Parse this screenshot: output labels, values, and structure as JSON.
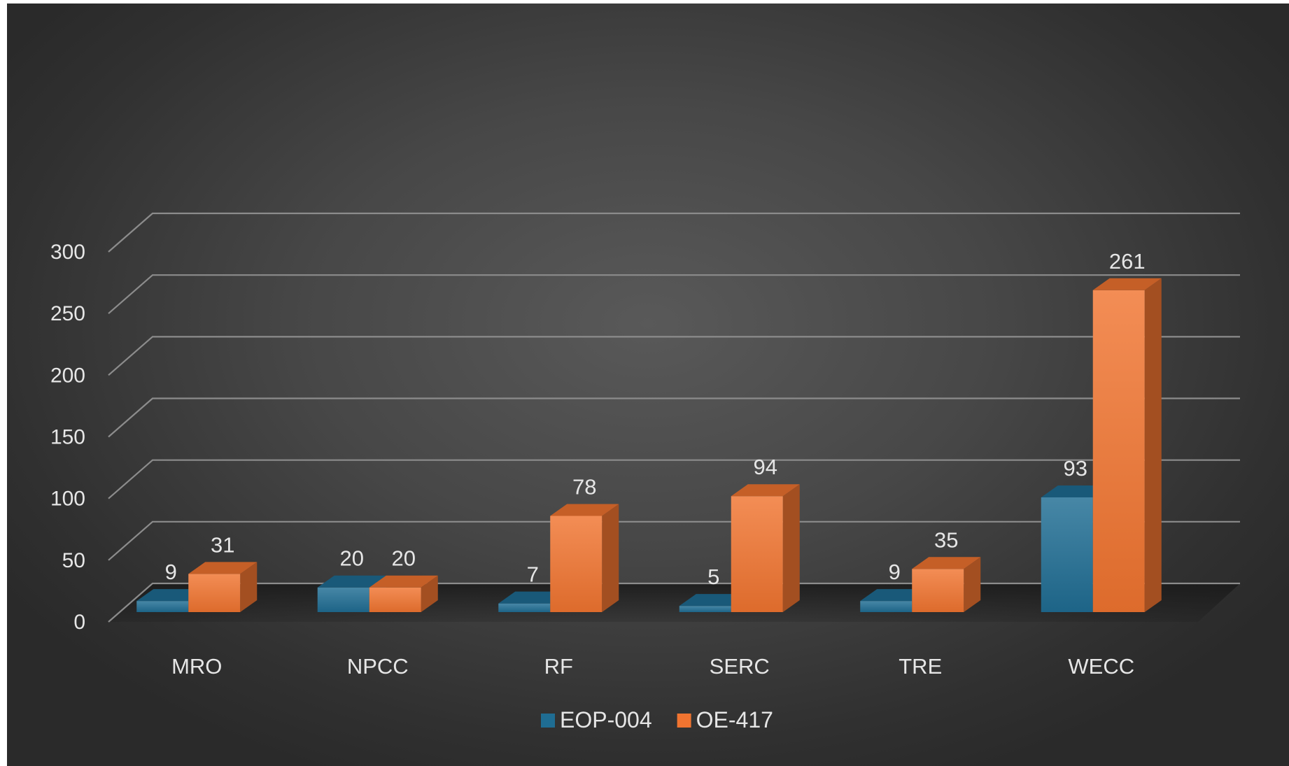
{
  "chart_data": {
    "type": "bar",
    "title": "",
    "xlabel": "",
    "ylabel": "",
    "categories": [
      "MRO",
      "NPCC",
      "RF",
      "SERC",
      "TRE",
      "WECC"
    ],
    "series": [
      {
        "name": "EOP-004",
        "values": [
          9,
          20,
          7,
          5,
          9,
          93
        ],
        "color": "#1f6d93"
      },
      {
        "name": "OE-417",
        "values": [
          31,
          20,
          78,
          94,
          35,
          261
        ],
        "color": "#f07430"
      }
    ],
    "ylim": [
      0,
      300
    ],
    "yticks": [
      0,
      50,
      100,
      150,
      200,
      250,
      300
    ],
    "grid": true,
    "legend": "bottom-center",
    "style": "3d-clustered-column",
    "background": "#474747",
    "text_color": "#e6e6e6"
  }
}
